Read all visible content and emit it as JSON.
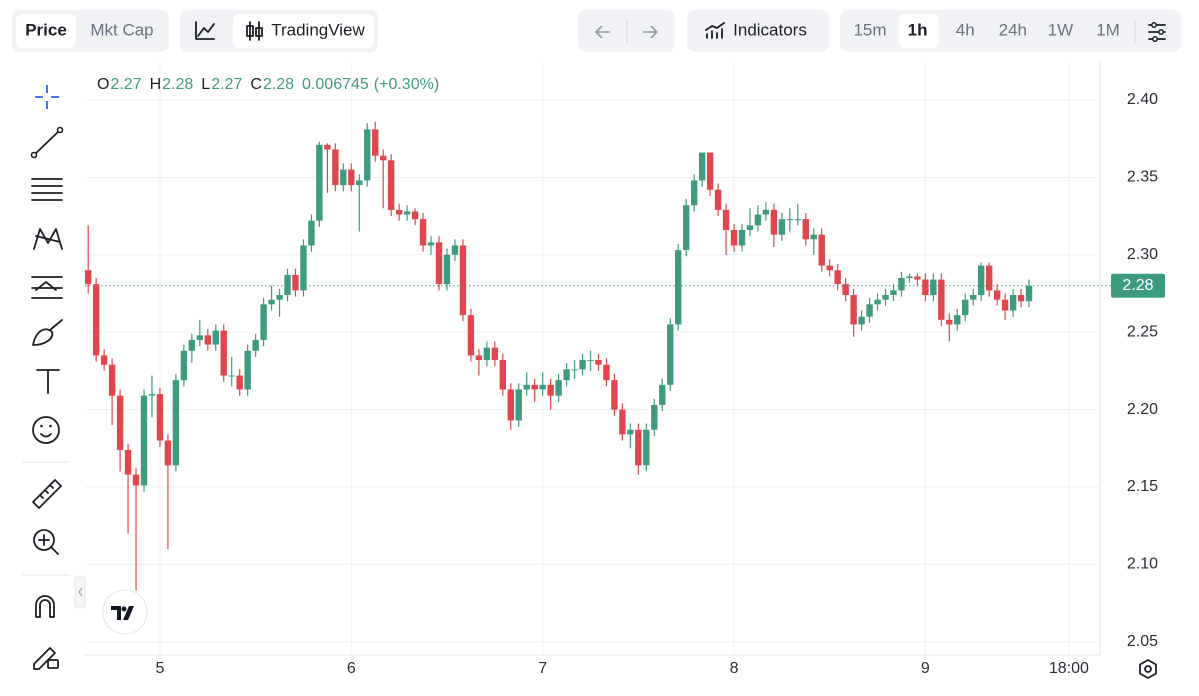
{
  "toolbar": {
    "price": "Price",
    "mkt_cap": "Mkt Cap",
    "trading_view": "TradingView",
    "indicators": "Indicators",
    "intervals": [
      "15m",
      "1h",
      "4h",
      "24h",
      "1W",
      "1M"
    ]
  },
  "chart_data": {
    "type": "candlestick",
    "ohlc_legend": {
      "labels": [
        "O",
        "H",
        "L",
        "C"
      ],
      "values": [
        2.27,
        2.28,
        2.27,
        2.28
      ],
      "change": 0.006745,
      "change_label": "(+0.30%)"
    },
    "x": [
      -9,
      -8,
      -7,
      -6,
      -5,
      -4,
      -3,
      -2,
      -1,
      0,
      1,
      2,
      3,
      4,
      5,
      6,
      7,
      8,
      9,
      10,
      11,
      12,
      13,
      14,
      15,
      16,
      17,
      18,
      19,
      20,
      21,
      22,
      23,
      24,
      25,
      26,
      27,
      28,
      29,
      30,
      31,
      32,
      33,
      34,
      35,
      36,
      37,
      38,
      39,
      40,
      41,
      42,
      43,
      44,
      45,
      46,
      47,
      48,
      49,
      50,
      51,
      52,
      53,
      54,
      55,
      56,
      57,
      58,
      59,
      60,
      61,
      62,
      63,
      64,
      65,
      66,
      67,
      68,
      69,
      70,
      71,
      72,
      73,
      74,
      75,
      76,
      77,
      78,
      79,
      80,
      81,
      82,
      83,
      84,
      85,
      86,
      87,
      88,
      89,
      90,
      91,
      92,
      93,
      94,
      95,
      96,
      97,
      98,
      99,
      100,
      101,
      102,
      103,
      104,
      105,
      106,
      107,
      108,
      109
    ],
    "values": [
      [
        2.29,
        2.319,
        2.275,
        2.281
      ],
      [
        2.281,
        2.285,
        2.231,
        2.235
      ],
      [
        2.235,
        2.239,
        2.225,
        2.229
      ],
      [
        2.229,
        2.233,
        2.19,
        2.209
      ],
      [
        2.209,
        2.213,
        2.16,
        2.174
      ],
      [
        2.174,
        2.178,
        2.12,
        2.158
      ],
      [
        2.158,
        2.162,
        2.083,
        2.151
      ],
      [
        2.151,
        2.213,
        2.147,
        2.209
      ],
      [
        2.209,
        2.222,
        2.195,
        2.21
      ],
      [
        2.21,
        2.214,
        2.176,
        2.18
      ],
      [
        2.18,
        2.184,
        2.11,
        2.164
      ],
      [
        2.164,
        2.223,
        2.16,
        2.219
      ],
      [
        2.219,
        2.242,
        2.215,
        2.238
      ],
      [
        2.238,
        2.249,
        2.23,
        2.245
      ],
      [
        2.245,
        2.258,
        2.241,
        2.248
      ],
      [
        2.248,
        2.252,
        2.238,
        2.242
      ],
      [
        2.242,
        2.255,
        2.238,
        2.251
      ],
      [
        2.251,
        2.255,
        2.218,
        2.222
      ],
      [
        2.222,
        2.234,
        2.215,
        2.222
      ],
      [
        2.222,
        2.226,
        2.209,
        2.213
      ],
      [
        2.213,
        2.242,
        2.209,
        2.238
      ],
      [
        2.238,
        2.249,
        2.234,
        2.245
      ],
      [
        2.245,
        2.272,
        2.241,
        2.268
      ],
      [
        2.268,
        2.28,
        2.264,
        2.271
      ],
      [
        2.271,
        2.278,
        2.26,
        2.274
      ],
      [
        2.274,
        2.291,
        2.27,
        2.287
      ],
      [
        2.287,
        2.291,
        2.273,
        2.277
      ],
      [
        2.277,
        2.31,
        2.273,
        2.306
      ],
      [
        2.306,
        2.326,
        2.302,
        2.322
      ],
      [
        2.322,
        2.373,
        2.318,
        2.371
      ],
      [
        2.371,
        2.372,
        2.34,
        2.368
      ],
      [
        2.368,
        2.372,
        2.341,
        2.345
      ],
      [
        2.345,
        2.359,
        2.341,
        2.355
      ],
      [
        2.355,
        2.359,
        2.341,
        2.345
      ],
      [
        2.345,
        2.352,
        2.315,
        2.348
      ],
      [
        2.348,
        2.385,
        2.344,
        2.381
      ],
      [
        2.381,
        2.386,
        2.36,
        2.364
      ],
      [
        2.364,
        2.368,
        2.33,
        2.361
      ],
      [
        2.361,
        2.365,
        2.325,
        2.329
      ],
      [
        2.329,
        2.333,
        2.322,
        2.326
      ],
      [
        2.326,
        2.332,
        2.322,
        2.328
      ],
      [
        2.328,
        2.33,
        2.319,
        2.323
      ],
      [
        2.323,
        2.327,
        2.302,
        2.306
      ],
      [
        2.306,
        2.312,
        2.3,
        2.308
      ],
      [
        2.308,
        2.312,
        2.277,
        2.281
      ],
      [
        2.281,
        2.304,
        2.277,
        2.3
      ],
      [
        2.3,
        2.31,
        2.296,
        2.306
      ],
      [
        2.306,
        2.31,
        2.257,
        2.261
      ],
      [
        2.261,
        2.265,
        2.231,
        2.235
      ],
      [
        2.235,
        2.239,
        2.222,
        2.232
      ],
      [
        2.232,
        2.244,
        2.228,
        2.24
      ],
      [
        2.24,
        2.244,
        2.228,
        2.232
      ],
      [
        2.232,
        2.236,
        2.209,
        2.213
      ],
      [
        2.213,
        2.217,
        2.187,
        2.193
      ],
      [
        2.193,
        2.217,
        2.189,
        2.213
      ],
      [
        2.213,
        2.224,
        2.209,
        2.216
      ],
      [
        2.216,
        2.22,
        2.205,
        2.213
      ],
      [
        2.213,
        2.224,
        2.209,
        2.216
      ],
      [
        2.216,
        2.22,
        2.2,
        2.209
      ],
      [
        2.209,
        2.223,
        2.205,
        2.219
      ],
      [
        2.219,
        2.23,
        2.215,
        2.226
      ],
      [
        2.226,
        2.232,
        2.22,
        2.226
      ],
      [
        2.226,
        2.236,
        2.222,
        2.232
      ],
      [
        2.232,
        2.238,
        2.225,
        2.232
      ],
      [
        2.232,
        2.236,
        2.225,
        2.229
      ],
      [
        2.229,
        2.233,
        2.215,
        2.219
      ],
      [
        2.219,
        2.223,
        2.196,
        2.2
      ],
      [
        2.2,
        2.204,
        2.18,
        2.184
      ],
      [
        2.184,
        2.191,
        2.175,
        2.187
      ],
      [
        2.187,
        2.191,
        2.158,
        2.164
      ],
      [
        2.164,
        2.191,
        2.16,
        2.187
      ],
      [
        2.187,
        2.207,
        2.183,
        2.203
      ],
      [
        2.203,
        2.22,
        2.199,
        2.216
      ],
      [
        2.216,
        2.259,
        2.212,
        2.255
      ],
      [
        2.255,
        2.307,
        2.251,
        2.303
      ],
      [
        2.303,
        2.336,
        2.299,
        2.332
      ],
      [
        2.332,
        2.352,
        2.328,
        2.348
      ],
      [
        2.348,
        2.366,
        2.344,
        2.366
      ],
      [
        2.366,
        2.366,
        2.338,
        2.342
      ],
      [
        2.342,
        2.346,
        2.325,
        2.329
      ],
      [
        2.329,
        2.333,
        2.3,
        2.316
      ],
      [
        2.316,
        2.32,
        2.302,
        2.306
      ],
      [
        2.306,
        2.32,
        2.302,
        2.316
      ],
      [
        2.316,
        2.33,
        2.312,
        2.319
      ],
      [
        2.319,
        2.332,
        2.315,
        2.326
      ],
      [
        2.326,
        2.334,
        2.322,
        2.329
      ],
      [
        2.329,
        2.333,
        2.305,
        2.313
      ],
      [
        2.313,
        2.327,
        2.309,
        2.323
      ],
      [
        2.323,
        2.33,
        2.315,
        2.323
      ],
      [
        2.323,
        2.333,
        2.319,
        2.323
      ],
      [
        2.323,
        2.327,
        2.306,
        2.31
      ],
      [
        2.31,
        2.317,
        2.3,
        2.313
      ],
      [
        2.313,
        2.317,
        2.289,
        2.293
      ],
      [
        2.293,
        2.297,
        2.286,
        2.29
      ],
      [
        2.29,
        2.294,
        2.277,
        2.281
      ],
      [
        2.281,
        2.285,
        2.27,
        2.274
      ],
      [
        2.274,
        2.278,
        2.247,
        2.255
      ],
      [
        2.255,
        2.264,
        2.251,
        2.26
      ],
      [
        2.26,
        2.272,
        2.256,
        2.268
      ],
      [
        2.268,
        2.275,
        2.264,
        2.271
      ],
      [
        2.271,
        2.278,
        2.267,
        2.274
      ],
      [
        2.274,
        2.281,
        2.27,
        2.277
      ],
      [
        2.277,
        2.289,
        2.273,
        2.285
      ],
      [
        2.285,
        2.288,
        2.282,
        2.286
      ],
      [
        2.286,
        2.288,
        2.28,
        2.284
      ],
      [
        2.284,
        2.288,
        2.27,
        2.274
      ],
      [
        2.274,
        2.288,
        2.27,
        2.284
      ],
      [
        2.284,
        2.288,
        2.254,
        2.258
      ],
      [
        2.258,
        2.262,
        2.244,
        2.255
      ],
      [
        2.255,
        2.265,
        2.251,
        2.261
      ],
      [
        2.261,
        2.275,
        2.257,
        2.271
      ],
      [
        2.271,
        2.278,
        2.267,
        2.274
      ],
      [
        2.274,
        2.295,
        2.27,
        2.293
      ],
      [
        2.293,
        2.295,
        2.273,
        2.277
      ],
      [
        2.277,
        2.281,
        2.267,
        2.271
      ],
      [
        2.271,
        2.275,
        2.258,
        2.264
      ],
      [
        2.264,
        2.278,
        2.26,
        2.274
      ],
      [
        2.274,
        2.278,
        2.266,
        2.27
      ],
      [
        2.27,
        2.284,
        2.266,
        2.28
      ]
    ],
    "up_color": "#3f9b80",
    "down_color": "#e0474c",
    "last_price": 2.28,
    "xlim": [
      -9.4,
      117.9
    ],
    "xticks": [
      {
        "value": 0,
        "label": "5"
      },
      {
        "value": 24,
        "label": "6"
      },
      {
        "value": 48,
        "label": "7"
      },
      {
        "value": 72,
        "label": "8"
      },
      {
        "value": 96,
        "label": "9"
      },
      {
        "value": 114,
        "label": "18:00"
      }
    ],
    "ylim": [
      2.0415,
      2.4245
    ],
    "yticks": [
      2.05,
      {
        "value": 2.1,
        "label": "2.10"
      },
      2.15,
      {
        "value": 2.2,
        "label": "2.20"
      },
      2.25,
      {
        "value": 2.3,
        "label": "2.30"
      },
      2.35,
      {
        "value": 2.4,
        "label": "2.40"
      }
    ],
    "grid": true
  }
}
